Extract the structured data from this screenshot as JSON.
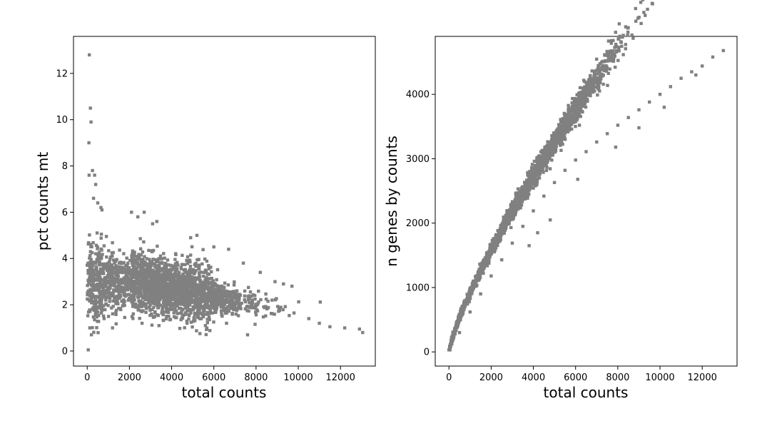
{
  "chart_data": [
    {
      "type": "scatter",
      "xlabel": "total counts",
      "ylabel": "pct counts mt",
      "xlim": [
        -650,
        13650
      ],
      "ylim": [
        -0.65,
        13.6
      ],
      "xticks": [
        "0",
        "2000",
        "4000",
        "6000",
        "8000",
        "10000",
        "12000"
      ],
      "yticks": [
        "0",
        "2",
        "4",
        "6",
        "8",
        "10",
        "12"
      ],
      "marker_color": "#808080",
      "grid": false,
      "points": [
        [
          100,
          12.8
        ],
        [
          150,
          10.5
        ],
        [
          180,
          9.9
        ],
        [
          80,
          9.0
        ],
        [
          90,
          7.6
        ],
        [
          250,
          7.8
        ],
        [
          350,
          7.6
        ],
        [
          300,
          6.6
        ],
        [
          50,
          0.05
        ],
        [
          200,
          0.7
        ],
        [
          120,
          1.0
        ],
        [
          400,
          7.2
        ],
        [
          500,
          6.4
        ],
        [
          650,
          6.2
        ],
        [
          700,
          6.1
        ],
        [
          2100,
          6.0
        ],
        [
          2700,
          6.0
        ],
        [
          2400,
          5.8
        ],
        [
          3300,
          5.6
        ],
        [
          3100,
          5.5
        ],
        [
          4900,
          4.9
        ],
        [
          5200,
          5.0
        ],
        [
          6000,
          4.5
        ],
        [
          6700,
          4.4
        ],
        [
          7400,
          3.8
        ],
        [
          8200,
          3.4
        ],
        [
          8900,
          3.0
        ],
        [
          9300,
          2.9
        ],
        [
          7600,
          0.7
        ],
        [
          9700,
          2.8
        ],
        [
          10500,
          1.4
        ],
        [
          11000,
          1.2
        ],
        [
          11500,
          1.05
        ],
        [
          12200,
          1.0
        ],
        [
          12900,
          0.95
        ],
        [
          13050,
          0.8
        ],
        [
          5600,
          1.1
        ],
        [
          6600,
          1.2
        ],
        [
          3400,
          1.1
        ],
        [
          2600,
          1.2
        ],
        [
          1200,
          1.0
        ],
        [
          800,
          1.4
        ]
      ]
    },
    {
      "type": "scatter",
      "xlabel": "total counts",
      "ylabel": "n genes by counts",
      "xlim": [
        -650,
        13650
      ],
      "ylim": [
        -220,
        4900
      ],
      "xticks": [
        "0",
        "2000",
        "4000",
        "6000",
        "8000",
        "10000",
        "12000"
      ],
      "yticks": [
        "0",
        "1000",
        "2000",
        "3000",
        "4000"
      ],
      "marker_color": "#808080",
      "grid": false,
      "points": [
        [
          50,
          30
        ],
        [
          500,
          300
        ],
        [
          1000,
          620
        ],
        [
          1500,
          900
        ],
        [
          2000,
          1180
        ],
        [
          2500,
          1430
        ],
        [
          3000,
          1690
        ],
        [
          3500,
          1950
        ],
        [
          4000,
          2190
        ],
        [
          4500,
          2420
        ],
        [
          5000,
          2630
        ],
        [
          5500,
          2820
        ],
        [
          6000,
          2980
        ],
        [
          6500,
          3110
        ],
        [
          7000,
          3260
        ],
        [
          7500,
          3390
        ],
        [
          8000,
          3520
        ],
        [
          8500,
          3640
        ],
        [
          9000,
          3760
        ],
        [
          9500,
          3880
        ],
        [
          10000,
          4000
        ],
        [
          10500,
          4120
        ],
        [
          11000,
          4250
        ],
        [
          11500,
          4350
        ],
        [
          12000,
          4440
        ],
        [
          12500,
          4580
        ],
        [
          13000,
          4680
        ],
        [
          3800,
          1650
        ],
        [
          4200,
          1850
        ],
        [
          4800,
          2050
        ],
        [
          6100,
          2680
        ],
        [
          7900,
          3180
        ],
        [
          9000,
          3480
        ],
        [
          10200,
          3800
        ],
        [
          11700,
          4300
        ]
      ]
    }
  ]
}
